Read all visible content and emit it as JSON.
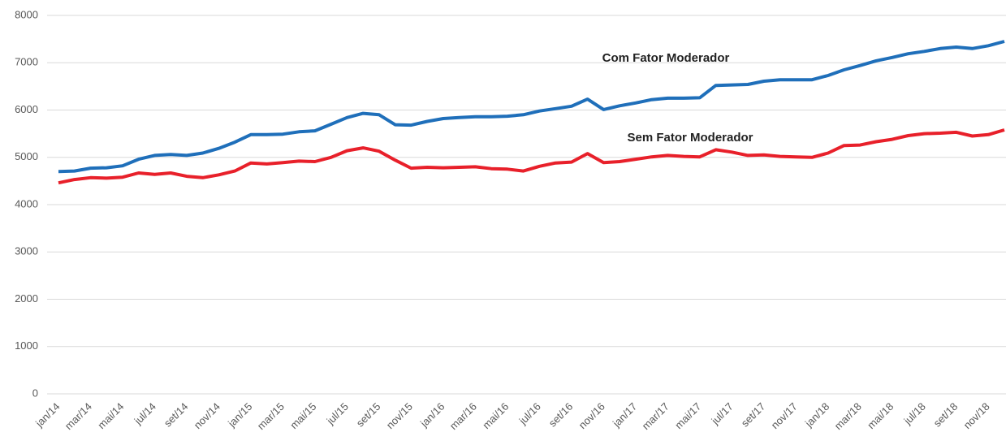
{
  "chart_data": {
    "type": "line",
    "categories": [
      "jan/14",
      null,
      "mar/14",
      null,
      "mai/14",
      null,
      "jul/14",
      null,
      "set/14",
      null,
      "nov/14",
      null,
      "jan/15",
      null,
      "mar/15",
      null,
      "mai/15",
      null,
      "jul/15",
      null,
      "set/15",
      null,
      "nov/15",
      null,
      "jan/16",
      null,
      "mar/16",
      null,
      "mai/16",
      null,
      "jul/16",
      null,
      "set/16",
      null,
      "nov/16",
      null,
      "jan/17",
      null,
      "mar/17",
      null,
      "mai/17",
      null,
      "jul/17",
      null,
      "set/17",
      null,
      "nov/17",
      null,
      "jan/18",
      null,
      "mar/18",
      null,
      "mai/18",
      null,
      "jul/18",
      null,
      "set/18",
      null,
      "nov/18",
      null
    ],
    "series": [
      {
        "name": "Com Fator Moderador",
        "color": "#1f6fba",
        "values": [
          4700,
          4710,
          4770,
          4780,
          4820,
          4960,
          5040,
          5060,
          5040,
          5090,
          5190,
          5320,
          5480,
          5480,
          5490,
          5540,
          5560,
          5700,
          5840,
          5930,
          5900,
          5690,
          5680,
          5760,
          5820,
          5840,
          5860,
          5860,
          5870,
          5900,
          5980,
          6030,
          6080,
          6230,
          6010,
          6090,
          6150,
          6220,
          6250,
          6250,
          6260,
          6520,
          6530,
          6540,
          6610,
          6640,
          6640,
          6640,
          6730,
          6850,
          6940,
          7040,
          7110,
          7190,
          7240,
          7300,
          7330,
          7300,
          7360,
          7450
        ]
      },
      {
        "name": "Sem Fator Moderador",
        "color": "#e8202a",
        "values": [
          4460,
          4530,
          4570,
          4560,
          4580,
          4670,
          4640,
          4670,
          4600,
          4570,
          4630,
          4710,
          4880,
          4860,
          4890,
          4920,
          4910,
          5000,
          5140,
          5200,
          5130,
          4940,
          4770,
          4790,
          4780,
          4790,
          4800,
          4760,
          4750,
          4710,
          4810,
          4880,
          4900,
          5080,
          4890,
          4910,
          4960,
          5010,
          5040,
          5020,
          5010,
          5160,
          5110,
          5040,
          5050,
          5020,
          5010,
          5000,
          5090,
          5250,
          5260,
          5330,
          5380,
          5460,
          5500,
          5510,
          5530,
          5450,
          5480,
          5580
        ]
      }
    ],
    "ylim": [
      0,
      8000
    ],
    "yticks": [
      0,
      1000,
      2000,
      3000,
      4000,
      5000,
      6000,
      7000,
      8000
    ],
    "grid": true
  }
}
